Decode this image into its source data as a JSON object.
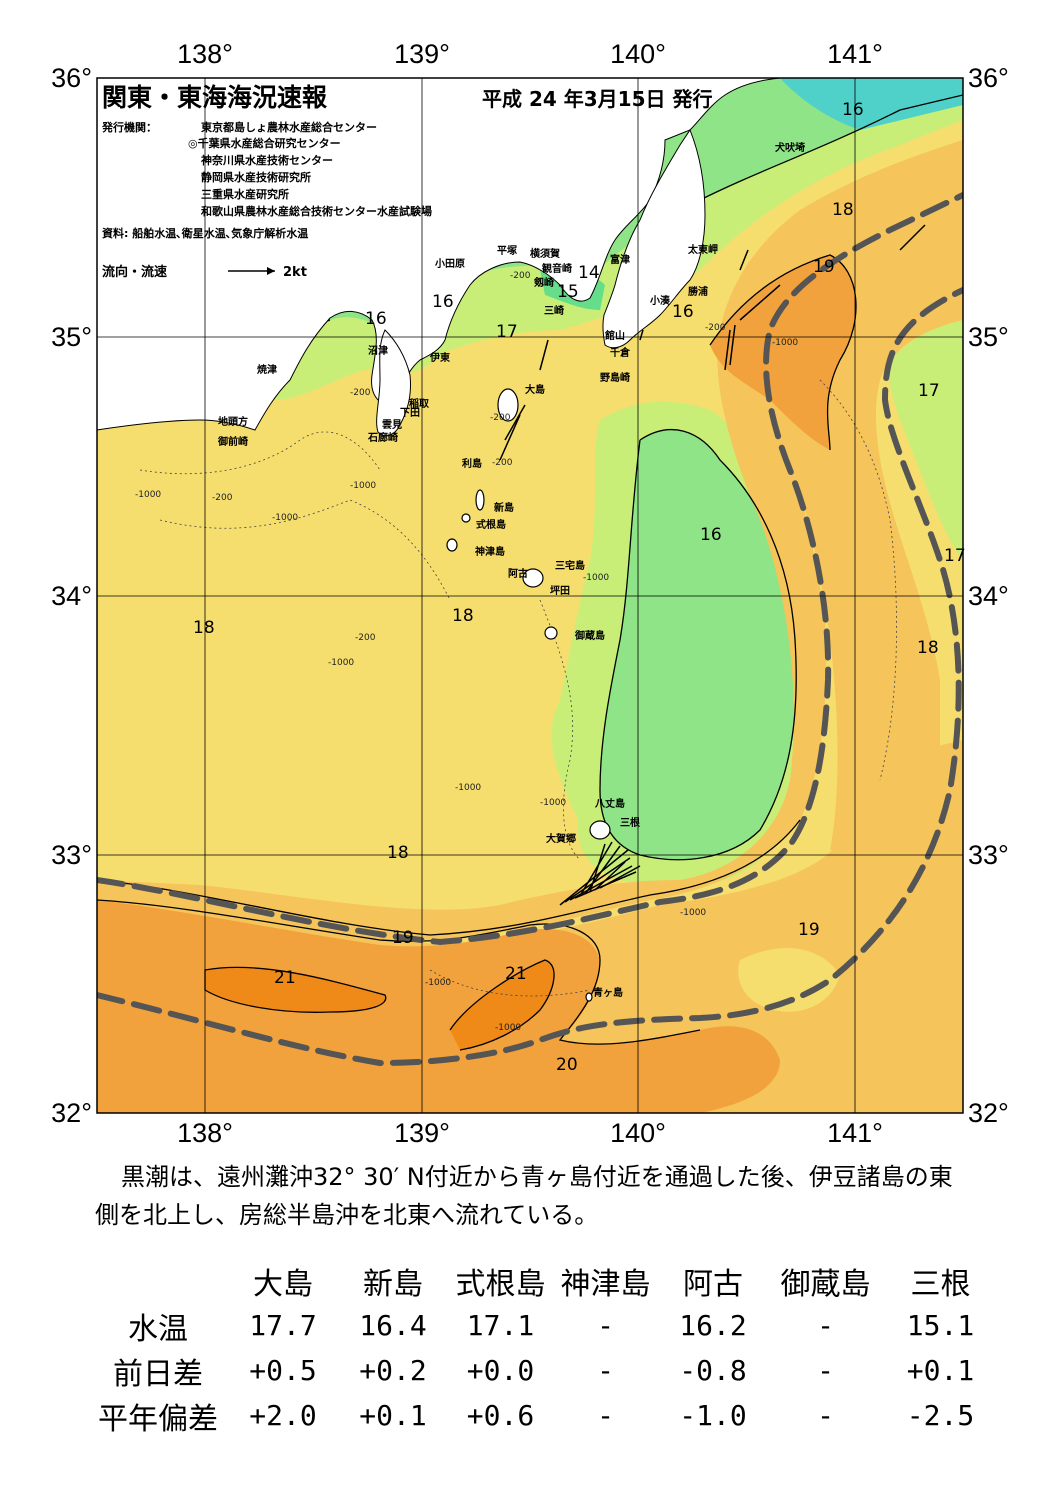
{
  "header": {
    "title": "関東・東海海況速報",
    "issue_date": "平成 24 年3月15日 発行",
    "publisher_label": "発行機関：",
    "publishers": [
      "東京都島しょ農林水産総合センター",
      "◎千葉県水産総合研究センター",
      "神奈川県水産技術センター",
      "静岡県水産技術研究所",
      "三重県水産研究所",
      "和歌山県農林水産総合技術センター水産試験場"
    ],
    "source": "資料: 船舶水温､衛星水温､気象庁解析水温",
    "legend_current": "流向・流速",
    "legend_speed": "2kt"
  },
  "axes": {
    "lon_labels": [
      "138°",
      "139°",
      "140°",
      "141°"
    ],
    "lat_labels": [
      "36°",
      "35°",
      "34°",
      "33°",
      "32°"
    ]
  },
  "colors": {
    "land": "#ffffff",
    "t14": "#4fd0c9",
    "t15": "#66dd88",
    "t16": "#8ee486",
    "t17": "#c8ee78",
    "t18": "#f6de6e",
    "t19": "#f5c45a",
    "t20": "#f2a23c",
    "t21": "#ef8a18",
    "kuroshio_axis": "#555555"
  },
  "isotherm_labels": [
    "14",
    "15",
    "16",
    "16",
    "16",
    "16",
    "16",
    "17",
    "17",
    "17",
    "18",
    "18",
    "18",
    "18",
    "18",
    "19",
    "19",
    "19",
    "20",
    "21",
    "21"
  ],
  "depth_labels": [
    "-200",
    "-1000"
  ],
  "place_names": [
    "犬吠埼",
    "太東岬",
    "勝浦",
    "小湊",
    "富津",
    "観音崎",
    "剱崎",
    "三崎",
    "横須賀",
    "平塚",
    "小田原",
    "館山",
    "千倉",
    "野島崎",
    "伊東",
    "沼津",
    "焼津",
    "稲取",
    "下田",
    "雲見",
    "石廊崎",
    "地頭方",
    "御前崎",
    "大島",
    "利島",
    "新島",
    "式根島",
    "神津島",
    "三宅島",
    "阿古",
    "坪田",
    "御蔵島",
    "八丈島",
    "三根",
    "大賀郷",
    "青ヶ島"
  ],
  "summary_text": "黒潮は、遠州灘沖32° 30′ N付近から青ヶ島付近を通過した後、伊豆諸島の東側を北上し、房総半島沖を北東へ流れている。",
  "stats": {
    "stations": [
      "大島",
      "新島",
      "式根島",
      "神津島",
      "阿古",
      "御蔵島",
      "三根"
    ],
    "rows": [
      {
        "label": "水温",
        "values": [
          "17.7",
          "16.4",
          "17.1",
          "-",
          "16.2",
          "-",
          "15.1"
        ]
      },
      {
        "label": "前日差",
        "values": [
          "+0.5",
          "+0.2",
          "+0.0",
          "-",
          "-0.8",
          "-",
          "+0.1"
        ]
      },
      {
        "label": "平年偏差",
        "values": [
          "+2.0",
          "+0.1",
          "+0.6",
          "-",
          "-1.0",
          "-",
          "-2.5"
        ]
      }
    ]
  }
}
